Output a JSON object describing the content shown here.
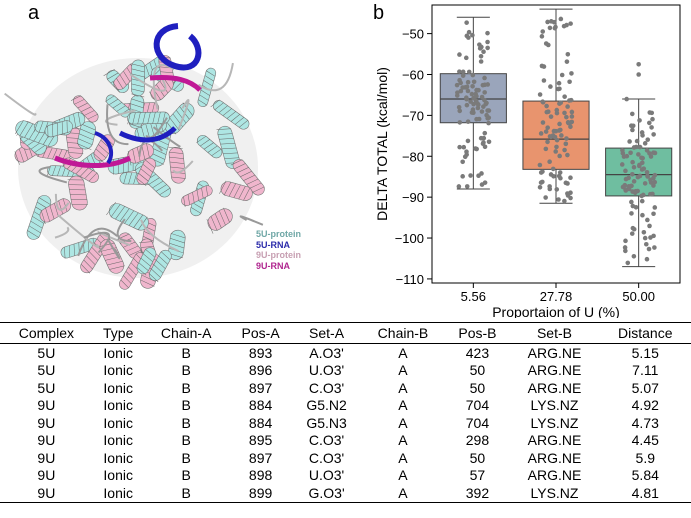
{
  "panel_a": {
    "label": "a",
    "legend": [
      {
        "text": "5U-protein",
        "color": "#6fa7a6"
      },
      {
        "text": "5U-RNA",
        "color": "#2b2baa"
      },
      {
        "text": "9U-protein",
        "color": "#c79fb2"
      },
      {
        "text": "9U-RNA",
        "color": "#b0268f"
      }
    ],
    "colors": {
      "protein_5u": "#aee6e3",
      "protein_9u": "#f0b6cd",
      "rna_5u": "#1f1fbf",
      "rna_9u": "#c01896",
      "grey": "#b7b7b7"
    }
  },
  "panel_b": {
    "label": "b",
    "chart_data": {
      "type": "box",
      "categories": [
        "5.56",
        "27.78",
        "50.00"
      ],
      "xlabel": "Proportaion of U (%)",
      "ylabel": "DELTA TOTAL (kcal/mol)",
      "ylim": [
        -111,
        -43
      ],
      "yticks": [
        -50,
        -60,
        -70,
        -80,
        -90,
        -100,
        -110
      ],
      "grid": false,
      "boxes": [
        {
          "category": "5.56",
          "whisker_low": -88,
          "q1": -71.8,
          "median": -66,
          "q3": -59.8,
          "whisker_high": -46,
          "color": "#9aa5bb"
        },
        {
          "category": "27.78",
          "whisker_low": -91.5,
          "q1": -83.2,
          "median": -75.8,
          "q3": -66.5,
          "whisker_high": -44,
          "color": "#e8946e"
        },
        {
          "category": "50.00",
          "whisker_low": -107,
          "q1": -89.7,
          "median": -84.5,
          "q3": -78,
          "whisker_high": -66,
          "color": "#6fbea0",
          "outliers": [
            -57.5,
            -60
          ]
        }
      ],
      "point_color": "#7a7a7a"
    }
  },
  "table": {
    "headers": [
      "Complex",
      "Type",
      "Chain-A",
      "Pos-A",
      "Set-A",
      "Chain-B",
      "Pos-B",
      "Set-B",
      "Distance"
    ],
    "rows": [
      [
        "5U",
        "Ionic",
        "B",
        "893",
        "A.O3'",
        "A",
        "423",
        "ARG.NE",
        "5.15"
      ],
      [
        "5U",
        "Ionic",
        "B",
        "896",
        "U.O3'",
        "A",
        "50",
        "ARG.NE",
        "7.11"
      ],
      [
        "5U",
        "Ionic",
        "B",
        "897",
        "C.O3'",
        "A",
        "50",
        "ARG.NE",
        "5.07"
      ],
      [
        "9U",
        "Ionic",
        "B",
        "884",
        "G5.N2",
        "A",
        "704",
        "LYS.NZ",
        "4.92"
      ],
      [
        "9U",
        "Ionic",
        "B",
        "884",
        "G5.N3",
        "A",
        "704",
        "LYS.NZ",
        "4.73"
      ],
      [
        "9U",
        "Ionic",
        "B",
        "895",
        "C.O3'",
        "A",
        "298",
        "ARG.NE",
        "4.45"
      ],
      [
        "9U",
        "Ionic",
        "B",
        "897",
        "C.O3'",
        "A",
        "50",
        "ARG.NE",
        "5.9"
      ],
      [
        "9U",
        "Ionic",
        "B",
        "898",
        "U.O3'",
        "A",
        "57",
        "ARG.NE",
        "5.84"
      ],
      [
        "9U",
        "Ionic",
        "B",
        "899",
        "G.O3'",
        "A",
        "392",
        "LYS.NZ",
        "4.81"
      ]
    ]
  }
}
